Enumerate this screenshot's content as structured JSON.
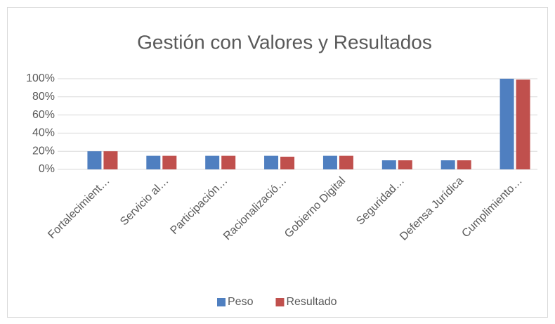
{
  "chart_data": {
    "type": "bar",
    "title": "Gestión con Valores y Resultados",
    "categories": [
      "Fortalecimient…",
      "Servicio al…",
      "Participación…",
      "Racionalizació…",
      "Gobierno Digital",
      "Seguridad…",
      "Defensa Jurídica",
      "Cumplimiento…"
    ],
    "series": [
      {
        "name": "Peso",
        "color": "#4f7fc0",
        "values": [
          20,
          15,
          15,
          15,
          15,
          10,
          10,
          100
        ]
      },
      {
        "name": "Resultado",
        "color": "#c0504d",
        "values": [
          20,
          15,
          15,
          14,
          15,
          10,
          10,
          99
        ]
      }
    ],
    "ylim": [
      0,
      100
    ],
    "yticks": [
      {
        "value": 0,
        "label": "0%"
      },
      {
        "value": 20,
        "label": "20%"
      },
      {
        "value": 40,
        "label": "40%"
      },
      {
        "value": 60,
        "label": "60%"
      },
      {
        "value": 80,
        "label": "80%"
      },
      {
        "value": 100,
        "label": "100%"
      }
    ],
    "grid": true,
    "legend": "bottom"
  }
}
